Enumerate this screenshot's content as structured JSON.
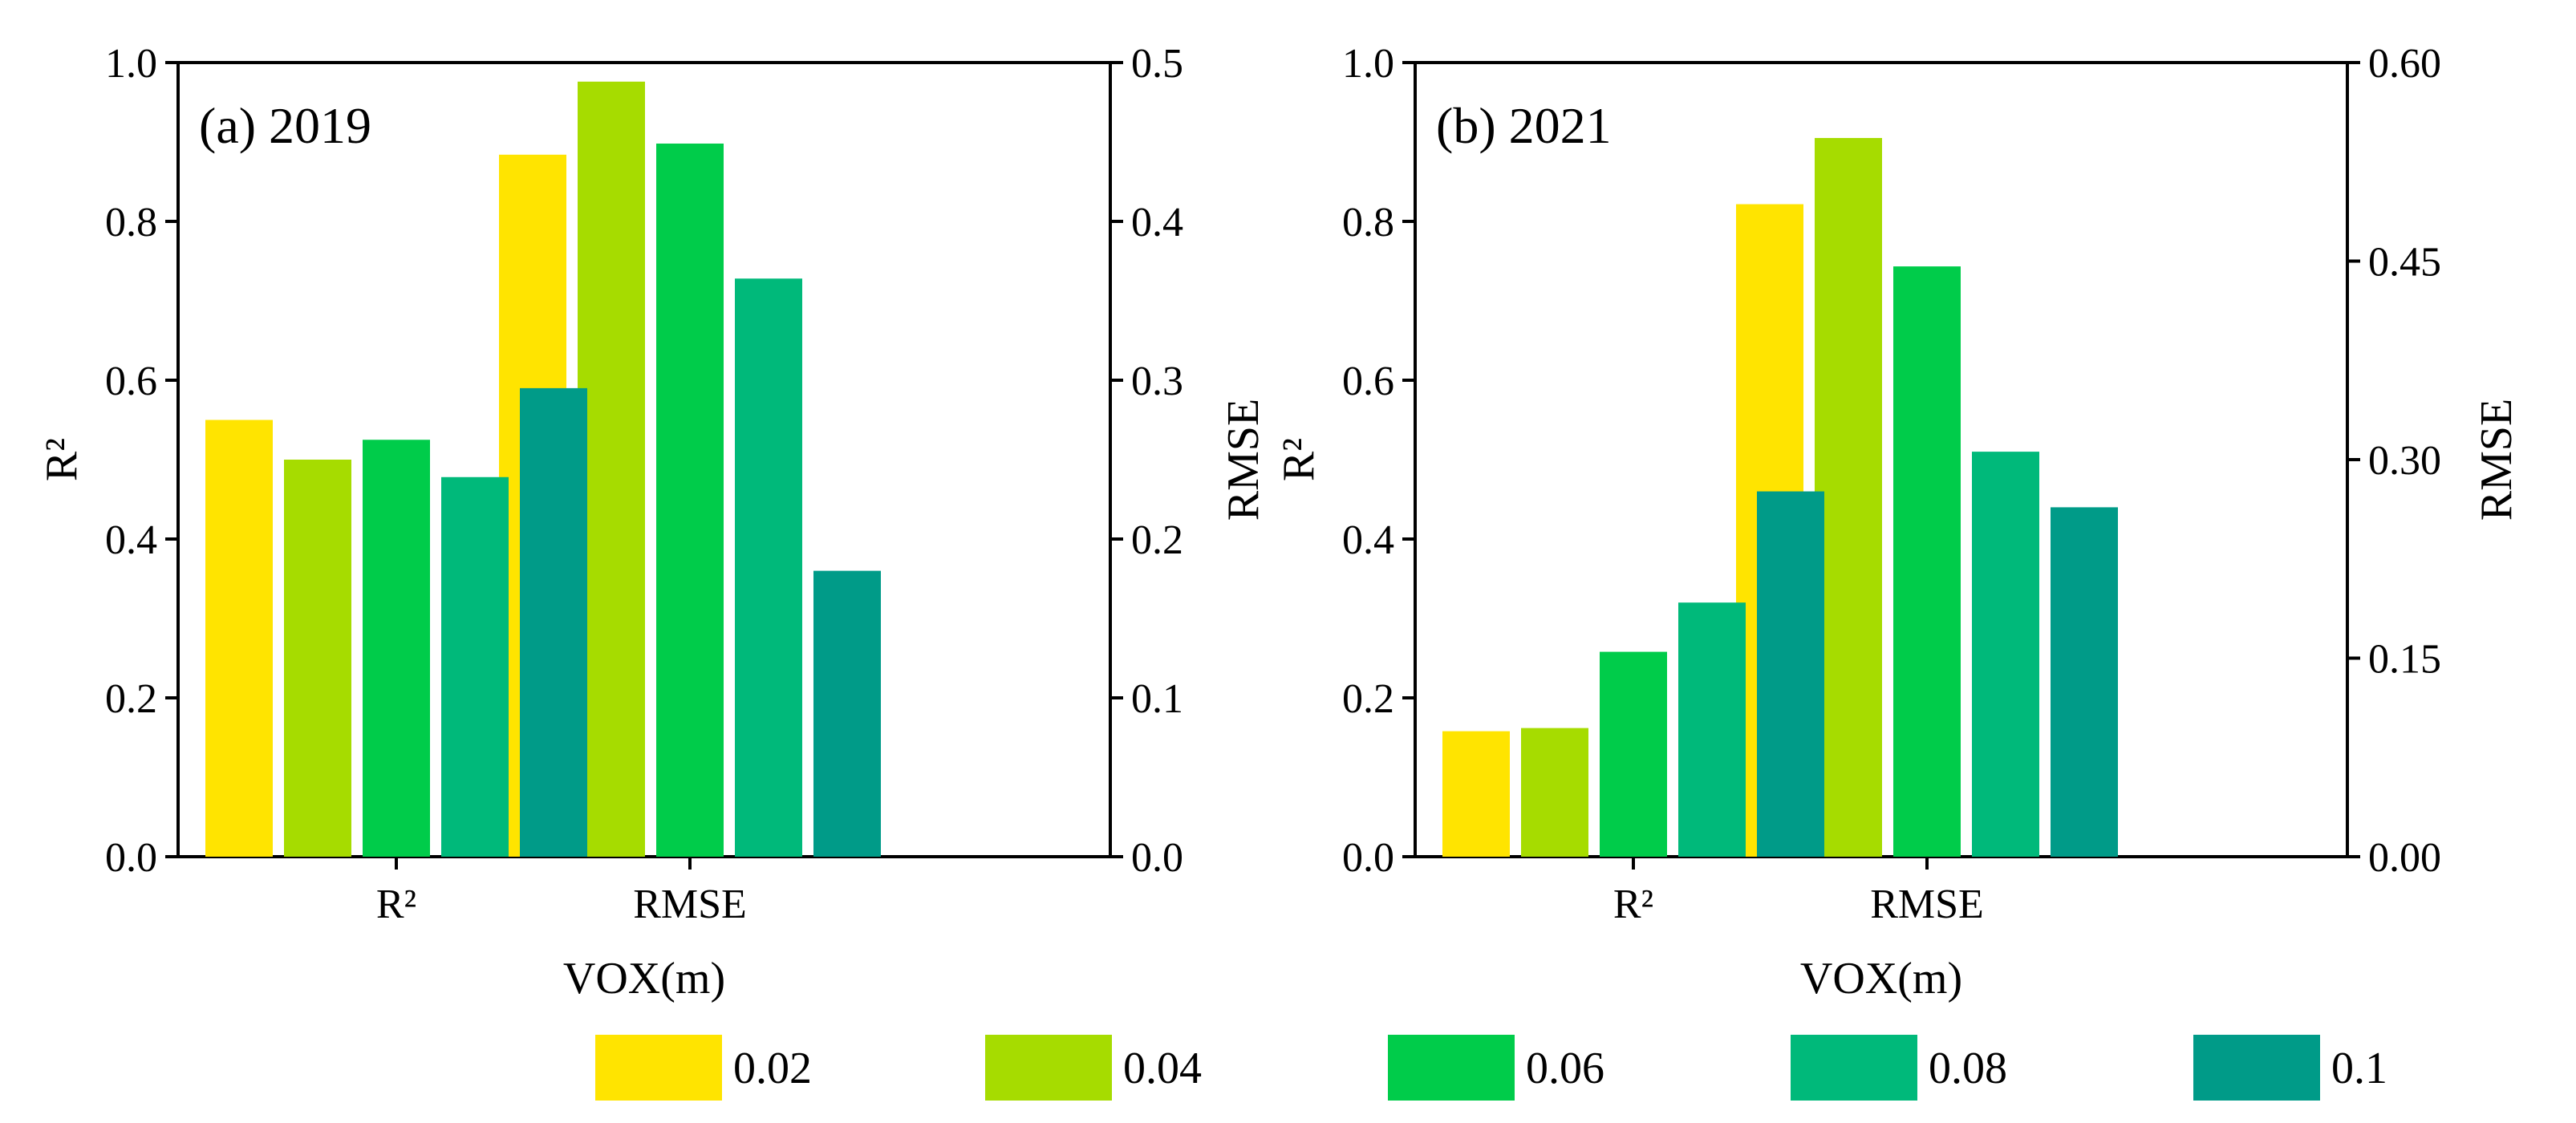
{
  "chart_data": [
    {
      "type": "bar",
      "title": "(a) 2019",
      "xlabel": "VOX(m)",
      "ylabel": "R²",
      "y2label": "RMSE",
      "groups": [
        "R²",
        "RMSE"
      ],
      "ylim": [
        0,
        1.0
      ],
      "y2lim": [
        0,
        0.5
      ],
      "yticks": [
        "0.0",
        "0.2",
        "0.4",
        "0.6",
        "0.8",
        "1.0"
      ],
      "y2ticks": [
        "0.0",
        "0.1",
        "0.2",
        "0.3",
        "0.4",
        "0.5"
      ],
      "series": [
        {
          "name": "0.02",
          "color": "#FFE400",
          "r2": 0.55,
          "rmse": 0.442
        },
        {
          "name": "0.04",
          "color": "#A6DC00",
          "r2": 0.5,
          "rmse": 0.488
        },
        {
          "name": "0.06",
          "color": "#00CC4A",
          "r2": 0.525,
          "rmse": 0.449
        },
        {
          "name": "0.08",
          "color": "#00B97A",
          "r2": 0.478,
          "rmse": 0.364
        },
        {
          "name": "0.1",
          "color": "#009B88",
          "r2": 0.59,
          "rmse": 0.18
        }
      ]
    },
    {
      "type": "bar",
      "title": "(b) 2021",
      "xlabel": "VOX(m)",
      "ylabel": "R²",
      "y2label": "RMSE",
      "groups": [
        "R²",
        "RMSE"
      ],
      "ylim": [
        0,
        1.0
      ],
      "y2lim": [
        0,
        0.6
      ],
      "yticks": [
        "0.0",
        "0.2",
        "0.4",
        "0.6",
        "0.8",
        "1.0"
      ],
      "y2ticks": [
        "0.00",
        "0.15",
        "0.30",
        "0.45",
        "0.60"
      ],
      "series": [
        {
          "name": "0.02",
          "color": "#FFE400",
          "r2": 0.158,
          "rmse": 0.493
        },
        {
          "name": "0.04",
          "color": "#A6DC00",
          "r2": 0.162,
          "rmse": 0.543
        },
        {
          "name": "0.06",
          "color": "#00CC4A",
          "r2": 0.258,
          "rmse": 0.446
        },
        {
          "name": "0.08",
          "color": "#00B97A",
          "r2": 0.32,
          "rmse": 0.306
        },
        {
          "name": "0.1",
          "color": "#009B88",
          "r2": 0.46,
          "rmse": 0.264
        }
      ]
    }
  ],
  "legend": {
    "entries": [
      {
        "label": "0.02",
        "color": "#FFE400"
      },
      {
        "label": "0.04",
        "color": "#A6DC00"
      },
      {
        "label": "0.06",
        "color": "#00CC4A"
      },
      {
        "label": "0.08",
        "color": "#00B97A"
      },
      {
        "label": "0.1",
        "color": "#009B88"
      }
    ]
  }
}
